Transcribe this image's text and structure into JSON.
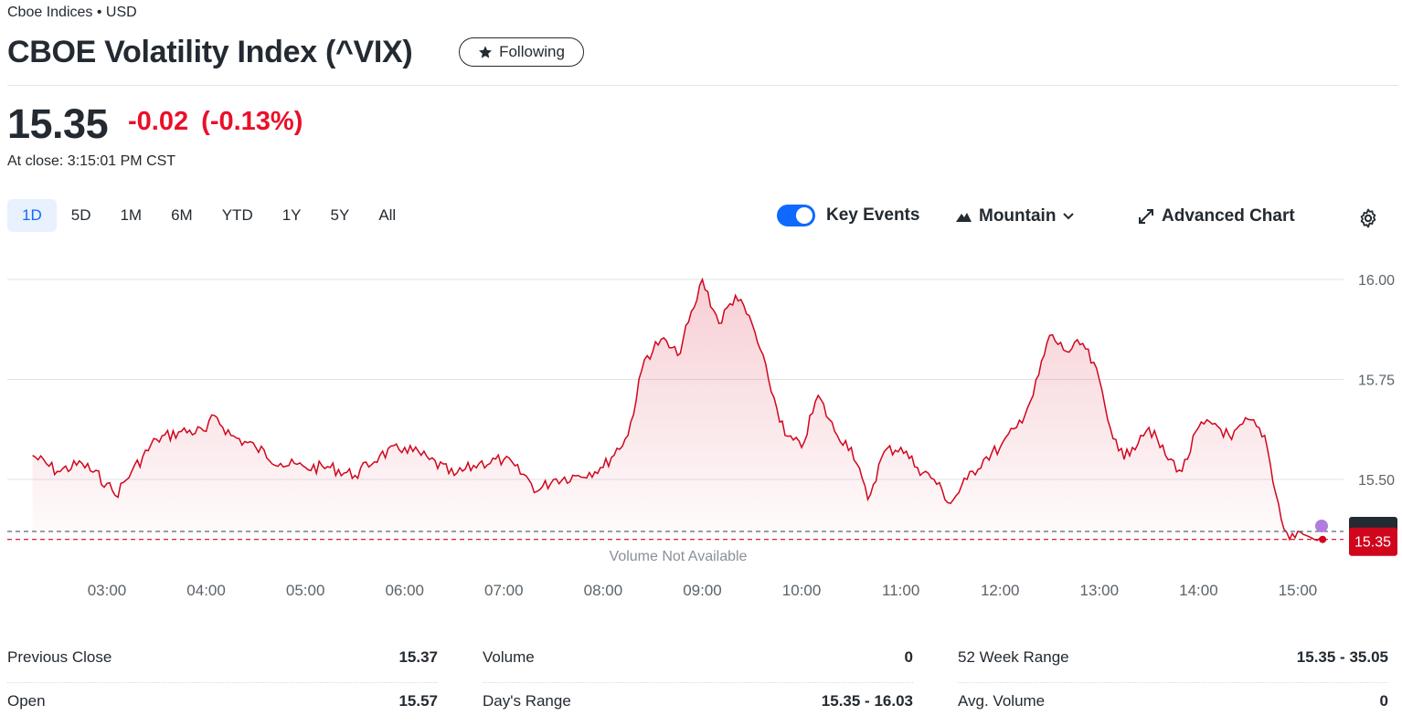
{
  "header": {
    "exchange": "Cboe Indices • USD",
    "title": "CBOE Volatility Index (^VIX)",
    "follow_label": "Following"
  },
  "quote": {
    "price": "15.35",
    "change": "-0.02",
    "change_pct": "(-0.13%)",
    "close_time": "At close: 3:15:01 PM CST"
  },
  "ranges": [
    "1D",
    "5D",
    "1M",
    "6M",
    "YTD",
    "1Y",
    "5Y",
    "All"
  ],
  "active_range": "1D",
  "toolbar": {
    "key_events_label": "Key Events",
    "key_events_on": true,
    "chart_type_label": "Mountain",
    "advanced_label": "Advanced Chart"
  },
  "colors": {
    "negative": "#eb0f29",
    "line": "#d0061d",
    "accent": "#0f69ff",
    "event_marker": "#b07cdd"
  },
  "chart_data": {
    "type": "area",
    "x_labels": [
      "03:00",
      "04:00",
      "05:00",
      "06:00",
      "07:00",
      "08:00",
      "09:00",
      "10:00",
      "11:00",
      "12:00",
      "13:00",
      "14:00",
      "15:00"
    ],
    "y_ticks": [
      "16.00",
      "15.75",
      "15.50"
    ],
    "ylim": [
      15.32,
      16.02
    ],
    "current_label": "15.35",
    "previous_close": 15.37,
    "volume_note": "Volume Not Available",
    "series": [
      {
        "x": [
          "02:15",
          "02:30",
          "02:45",
          "03:00",
          "03:05",
          "03:15",
          "03:30",
          "03:45",
          "04:00",
          "04:05",
          "04:15",
          "04:30",
          "04:45",
          "05:00",
          "05:15",
          "05:30",
          "05:45",
          "06:00",
          "06:15",
          "06:30",
          "06:45",
          "07:00",
          "07:15",
          "07:20",
          "07:30",
          "07:45",
          "08:00",
          "08:15",
          "08:25",
          "08:35",
          "08:45",
          "08:55",
          "09:00",
          "09:10",
          "09:20",
          "09:30",
          "09:40",
          "09:50",
          "10:00",
          "10:10",
          "10:20",
          "10:30",
          "10:40",
          "10:50",
          "11:00",
          "11:10",
          "11:20",
          "11:30",
          "11:40",
          "11:50",
          "12:00",
          "12:10",
          "12:20",
          "12:30",
          "12:40",
          "12:50",
          "13:00",
          "13:05",
          "13:10",
          "13:15",
          "13:20",
          "13:25",
          "13:30",
          "13:40",
          "13:50",
          "14:00",
          "14:10",
          "14:20",
          "14:30",
          "14:40",
          "14:50",
          "14:55",
          "15:00",
          "15:05",
          "15:10",
          "15:15"
        ],
        "y": [
          15.56,
          15.52,
          15.54,
          15.49,
          15.46,
          15.52,
          15.6,
          15.62,
          15.62,
          15.66,
          15.61,
          15.58,
          15.54,
          15.53,
          15.53,
          15.51,
          15.56,
          15.58,
          15.55,
          15.51,
          15.54,
          15.55,
          15.5,
          15.47,
          15.5,
          15.51,
          15.53,
          15.61,
          15.8,
          15.85,
          15.81,
          15.93,
          16.0,
          15.89,
          15.96,
          15.89,
          15.75,
          15.61,
          15.58,
          15.71,
          15.62,
          15.58,
          15.45,
          15.57,
          15.58,
          15.53,
          15.5,
          15.44,
          15.5,
          15.55,
          15.58,
          15.63,
          15.71,
          15.86,
          15.82,
          15.84,
          15.75,
          15.65,
          15.6,
          15.55,
          15.58,
          15.61,
          15.63,
          15.56,
          15.52,
          15.63,
          15.64,
          15.6,
          15.65,
          15.61,
          15.4,
          15.35,
          15.37,
          15.36,
          15.35,
          15.35
        ]
      }
    ]
  },
  "stats": [
    [
      {
        "label": "Previous Close",
        "value": "15.37"
      },
      {
        "label": "Open",
        "value": "15.57"
      }
    ],
    [
      {
        "label": "Volume",
        "value": "0"
      },
      {
        "label": "Day's Range",
        "value": "15.35 - 16.03"
      }
    ],
    [
      {
        "label": "52 Week Range",
        "value": "15.35 - 35.05"
      },
      {
        "label": "Avg. Volume",
        "value": "0"
      }
    ]
  ]
}
